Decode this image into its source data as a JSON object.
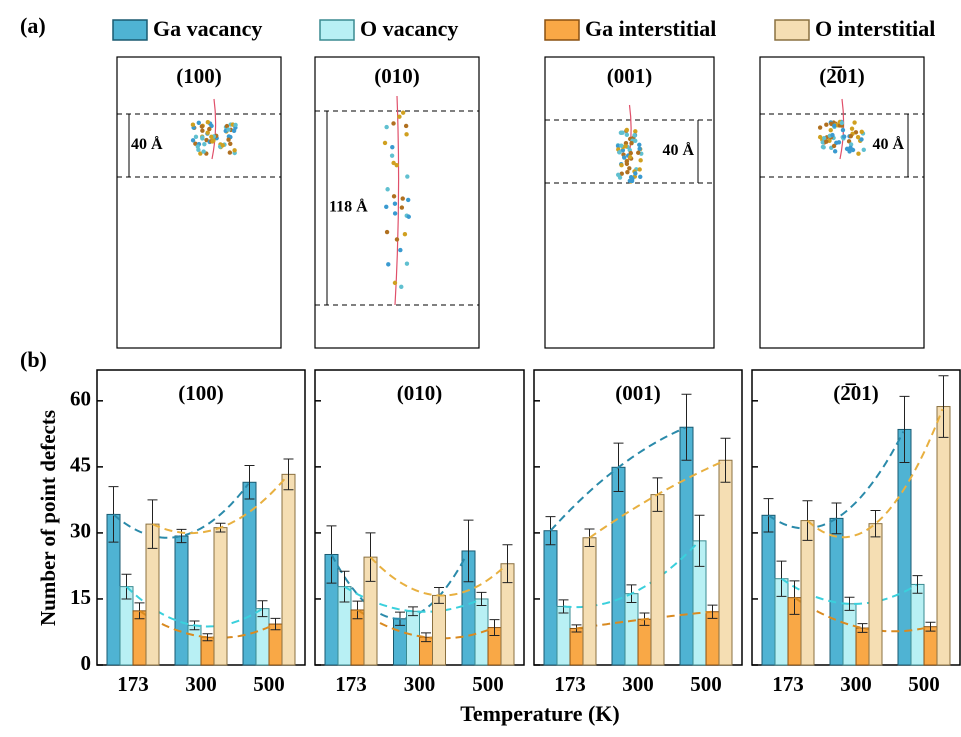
{
  "panel_labels": [
    "(a)",
    "(b)"
  ],
  "legend": [
    {
      "name": "Ga vacancy",
      "color": "#4fb3d3"
    },
    {
      "name": "O vacancy",
      "color": "#b8f0f4"
    },
    {
      "name": "Ga interstitial",
      "color": "#f9a846"
    },
    {
      "name": "O interstitial",
      "color": "#f5deb3"
    }
  ],
  "structures": [
    {
      "label": "(100)",
      "depth_label": "40 Å"
    },
    {
      "label": "(010)",
      "depth_label": "118 Å"
    },
    {
      "label": "(001)",
      "depth_label": "40 Å"
    },
    {
      "label": "(2̅01)",
      "depth_label": "40 Å"
    }
  ],
  "x_label": "Temperature (K)",
  "y_label": "Number of point defects",
  "chart_data": [
    {
      "type": "bar",
      "title": "(100)",
      "categories": [
        "173",
        "300",
        "500"
      ],
      "ylim": [
        0,
        67
      ],
      "yticks": [
        0,
        15,
        30,
        45,
        60
      ],
      "series": [
        {
          "values": [
            34.2,
            29.3,
            41.5
          ],
          "errors": [
            6.3,
            1.5,
            3.8
          ]
        },
        {
          "values": [
            17.8,
            9.0,
            12.8
          ],
          "errors": [
            2.8,
            1.0,
            1.8
          ]
        },
        {
          "values": [
            12.3,
            6.3,
            9.3
          ],
          "errors": [
            1.8,
            0.8,
            1.3
          ]
        },
        {
          "values": [
            32.0,
            31.2,
            43.3
          ],
          "errors": [
            5.5,
            1.0,
            3.5
          ]
        }
      ]
    },
    {
      "type": "bar",
      "title": "(010)",
      "categories": [
        "173",
        "300",
        "500"
      ],
      "ylim": [
        0,
        67
      ],
      "yticks": [
        0,
        15,
        30,
        45,
        60
      ],
      "series": [
        {
          "values": [
            25.1,
            10.5,
            25.9
          ],
          "errors": [
            6.5,
            1.5,
            7.0
          ]
        },
        {
          "values": [
            17.8,
            12.2,
            15.0
          ],
          "errors": [
            3.5,
            1.0,
            1.5
          ]
        },
        {
          "values": [
            12.5,
            6.3,
            8.5
          ],
          "errors": [
            2.0,
            1.0,
            1.8
          ]
        },
        {
          "values": [
            24.5,
            15.8,
            23.0
          ],
          "errors": [
            5.5,
            1.8,
            4.3
          ]
        }
      ]
    },
    {
      "type": "bar",
      "title": "(001)",
      "categories": [
        "173",
        "300",
        "500"
      ],
      "ylim": [
        0,
        67
      ],
      "yticks": [
        0,
        15,
        30,
        45,
        60
      ],
      "series": [
        {
          "values": [
            30.5,
            44.9,
            54.0
          ],
          "errors": [
            3.2,
            5.5,
            7.5
          ]
        },
        {
          "values": [
            13.3,
            16.2,
            28.2
          ],
          "errors": [
            1.5,
            2.0,
            5.8
          ]
        },
        {
          "values": [
            8.3,
            10.4,
            12.1
          ],
          "errors": [
            0.8,
            1.4,
            1.5
          ]
        },
        {
          "values": [
            28.9,
            38.7,
            46.5
          ],
          "errors": [
            2.0,
            3.8,
            5.0
          ]
        }
      ]
    },
    {
      "type": "bar",
      "title": "(2̅01)",
      "categories": [
        "173",
        "300",
        "500"
      ],
      "ylim": [
        0,
        67
      ],
      "yticks": [
        0,
        15,
        30,
        45,
        60
      ],
      "series": [
        {
          "values": [
            34.0,
            33.3,
            53.5
          ],
          "errors": [
            3.8,
            3.5,
            7.5
          ]
        },
        {
          "values": [
            19.6,
            13.9,
            18.3
          ],
          "errors": [
            4.0,
            1.5,
            2.0
          ]
        },
        {
          "values": [
            15.3,
            8.4,
            8.7
          ],
          "errors": [
            3.8,
            1.0,
            1.0
          ]
        },
        {
          "values": [
            32.8,
            32.1,
            58.7
          ],
          "errors": [
            4.5,
            3.0,
            7.0
          ]
        }
      ]
    }
  ]
}
